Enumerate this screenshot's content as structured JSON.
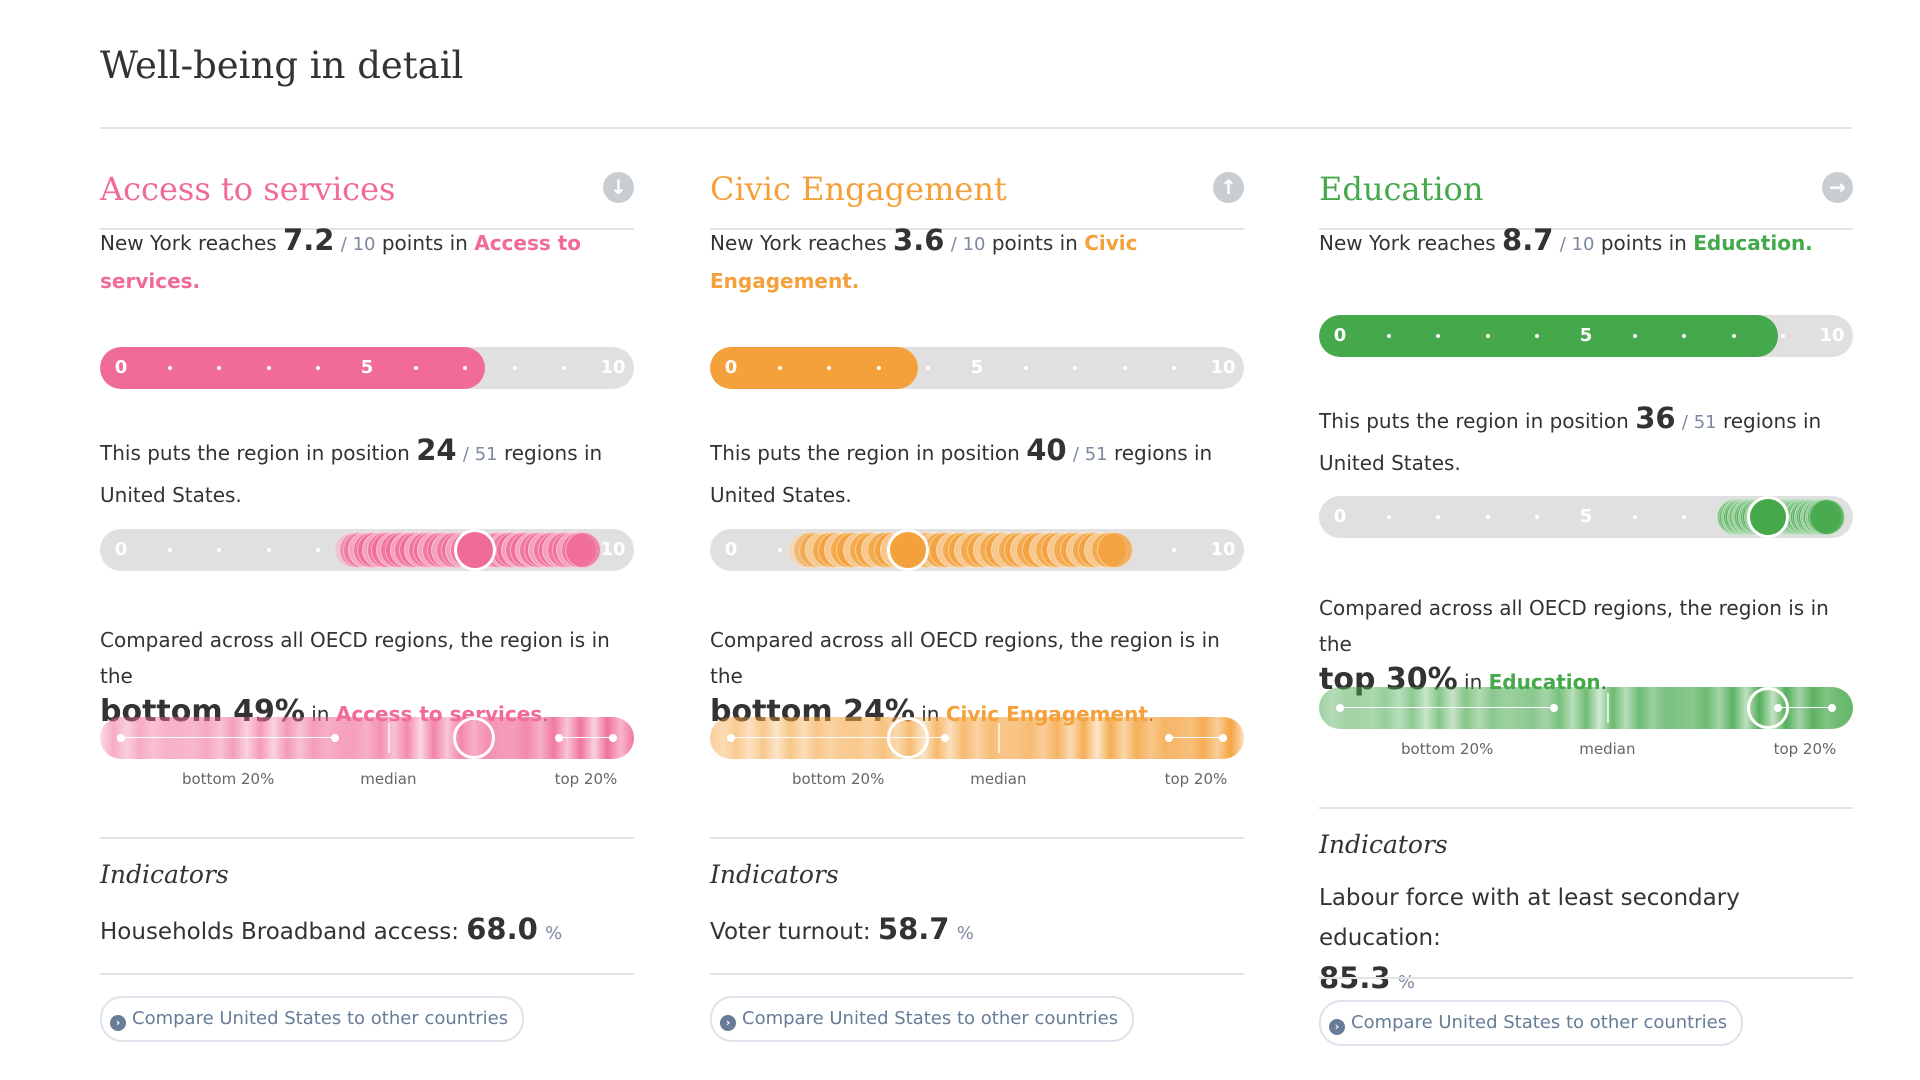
{
  "page": {
    "title": "Well-being in detail"
  },
  "common": {
    "reaches_prefix": "New York reaches",
    "out_of_10": "/ 10",
    "points_in": "points in",
    "position_prefix": "This puts the region in position",
    "out_of_regions": "/ 51",
    "regions_in": "regions in",
    "country": "United States.",
    "compared_prefix": "Compared across all OECD regions, the region is in the",
    "in_word": "in",
    "period": ".",
    "indicators_title": "Indicators",
    "compare_label": "Compare United States to other countries",
    "compare_icon": "arrow-right-circle-icon",
    "scale_labels": [
      "0",
      "5",
      "10"
    ],
    "percent_unit": "%"
  },
  "sections": [
    {
      "title": "Access to services",
      "color": "#f06b96",
      "light_color": "#f7b3c9",
      "toggle_icon": "arrow-down-circle-icon",
      "toggle_glyph": "↓",
      "score": "7.2",
      "score_value": 7.2,
      "category_label": "Access to services.",
      "rank": "24",
      "rank_value": 24,
      "oecd_prefix": "bottom 49%",
      "oecd_category": "Access to services",
      "oecd_position": 0.7,
      "oecd_labels": [
        "bottom 20%",
        "median",
        "top 20%"
      ],
      "indicator_label": "Households Broadband access:",
      "indicator_value": "68.0"
    },
    {
      "title": "Civic Engagement",
      "color": "#f4a13b",
      "light_color": "#f8d3a6",
      "toggle_icon": "arrow-up-circle-icon",
      "toggle_glyph": "↑",
      "score": "3.6",
      "score_value": 3.6,
      "category_label": "Civic Engagement.",
      "rank": "40",
      "rank_value": 40,
      "oecd_prefix": "bottom 24%",
      "oecd_category": "Civic Engagement",
      "oecd_position": 0.37,
      "oecd_labels": [
        "bottom 20%",
        "median",
        "top 20%"
      ],
      "indicator_label": "Voter turnout:",
      "indicator_value": "58.7"
    },
    {
      "title": "Education",
      "color": "#45a84b",
      "light_color": "#a9d6aa",
      "toggle_icon": "arrow-right-circle-icon",
      "toggle_glyph": "→",
      "score": "8.7",
      "score_value": 8.7,
      "category_label": "Education.",
      "rank": "36",
      "rank_value": 36,
      "oecd_prefix": "top 30%",
      "oecd_category": "Education",
      "oecd_position": 0.84,
      "oecd_labels": [
        "bottom 20%",
        "median",
        "top 20%"
      ],
      "indicator_label": "Labour force with at least secondary education:",
      "indicator_value": "85.3"
    }
  ]
}
